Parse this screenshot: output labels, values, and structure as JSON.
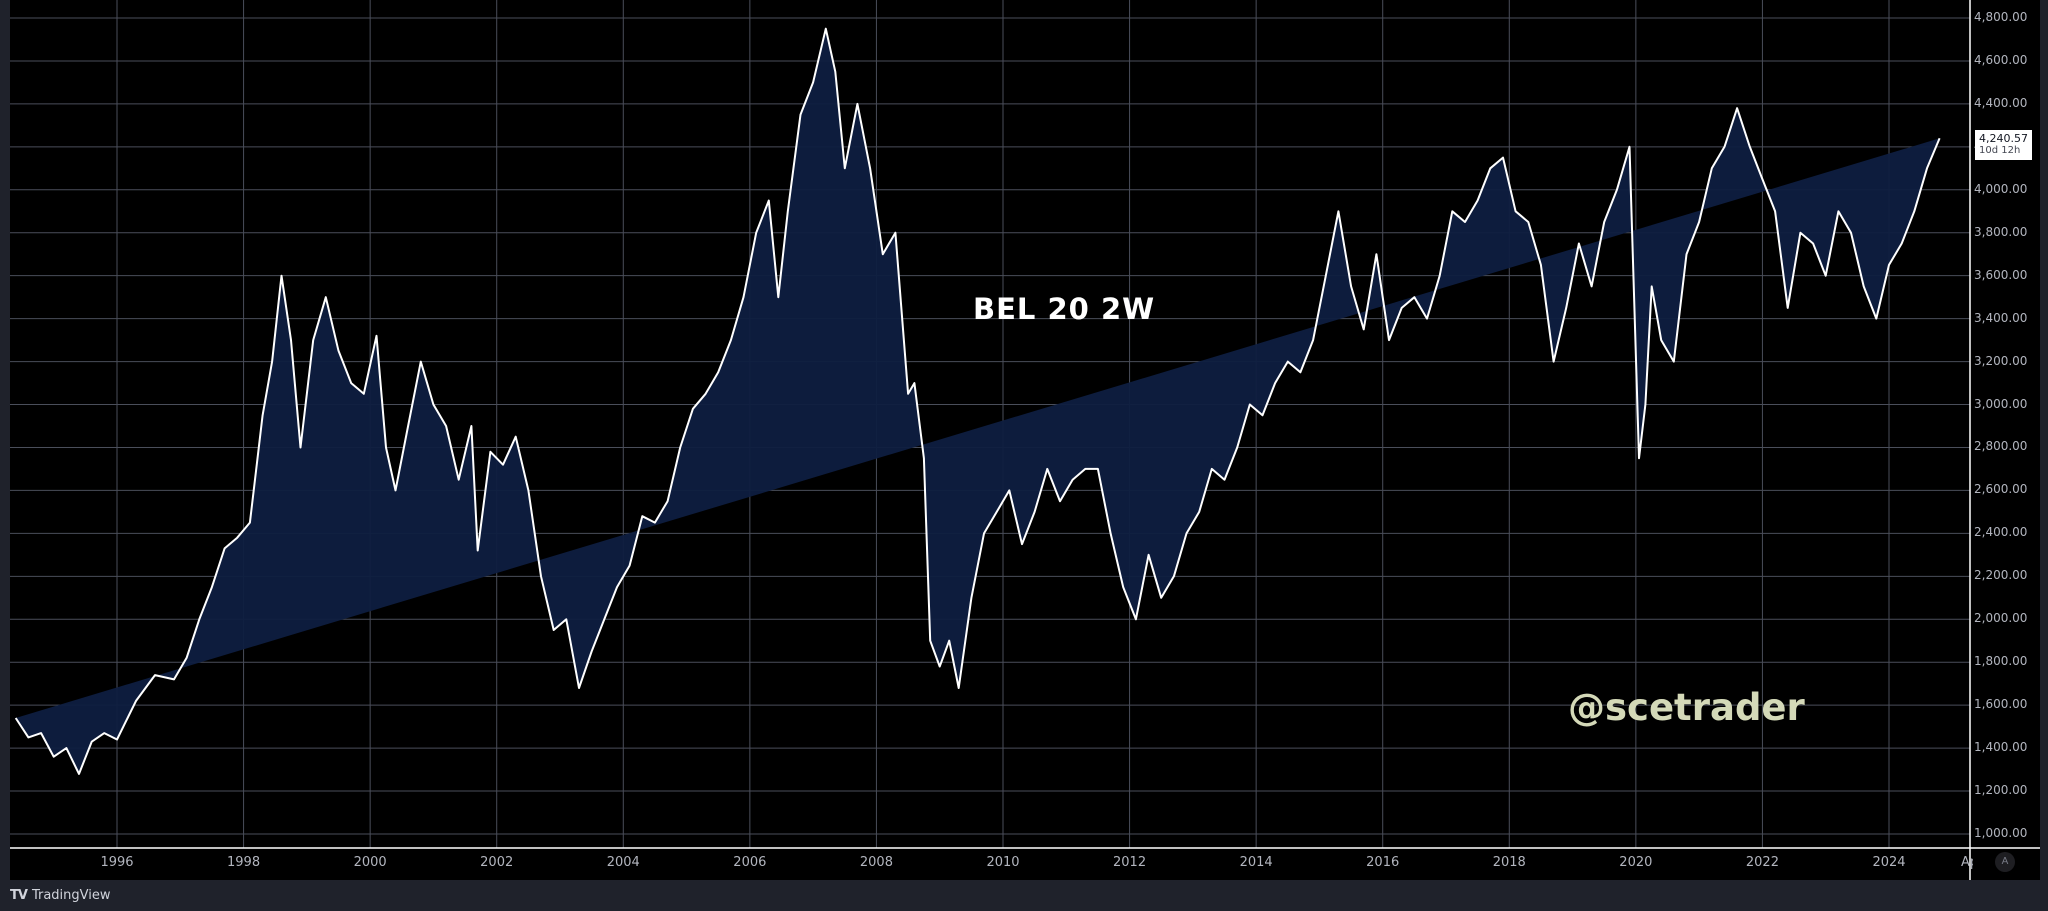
{
  "window": {
    "brand": "TradingView",
    "brand_logo": "TV"
  },
  "chart": {
    "title": "BEL 20 2W",
    "watermark": "@scetrader",
    "last_price": "4,240.57",
    "countdown": "10d 12h",
    "auto_scale_label": "A",
    "time_axis_cutoff_label": "Ap"
  },
  "colors": {
    "background": "#000000",
    "area_fill": "#0e1d40",
    "line": "#ffffff",
    "grid": "#4a4e5a",
    "watermark": "#d4d9b8",
    "axis_text": "#b2b5be",
    "footer_bg": "#1f222b"
  },
  "price_axis": [
    "4,800.00",
    "4,600.00",
    "4,400.00",
    "4,200.00",
    "4,000.00",
    "3,800.00",
    "3,600.00",
    "3,400.00",
    "3,200.00",
    "3,000.00",
    "2,800.00",
    "2,600.00",
    "2,400.00",
    "2,200.00",
    "2,000.00",
    "1,800.00",
    "1,600.00",
    "1,400.00",
    "1,200.00",
    "1,000.00"
  ],
  "time_axis": [
    "1996",
    "1998",
    "2000",
    "2002",
    "2004",
    "2006",
    "2008",
    "2010",
    "2012",
    "2014",
    "2016",
    "2018",
    "2020",
    "2022",
    "2024"
  ],
  "chart_data": {
    "type": "area",
    "title": "BEL 20 2W",
    "xlabel": "",
    "ylabel": "",
    "ylim": [
      950,
      4850
    ],
    "xlim": [
      1994.4,
      2024.9
    ],
    "grid": true,
    "legend": "none",
    "x": [
      1994.4,
      1994.6,
      1994.8,
      1995.0,
      1995.2,
      1995.4,
      1995.6,
      1995.8,
      1996.0,
      1996.3,
      1996.6,
      1996.9,
      1997.1,
      1997.3,
      1997.5,
      1997.7,
      1997.9,
      1998.1,
      1998.3,
      1998.45,
      1998.6,
      1998.75,
      1998.9,
      1999.1,
      1999.3,
      1999.5,
      1999.7,
      1999.9,
      2000.1,
      2000.25,
      2000.4,
      2000.6,
      2000.8,
      2001.0,
      2001.2,
      2001.4,
      2001.6,
      2001.7,
      2001.9,
      2002.1,
      2002.3,
      2002.5,
      2002.7,
      2002.9,
      2003.1,
      2003.3,
      2003.5,
      2003.7,
      2003.9,
      2004.1,
      2004.3,
      2004.5,
      2004.7,
      2004.9,
      2005.1,
      2005.3,
      2005.5,
      2005.7,
      2005.9,
      2006.1,
      2006.3,
      2006.45,
      2006.6,
      2006.8,
      2007.0,
      2007.2,
      2007.35,
      2007.5,
      2007.7,
      2007.9,
      2008.1,
      2008.3,
      2008.5,
      2008.6,
      2008.75,
      2008.85,
      2009.0,
      2009.15,
      2009.3,
      2009.5,
      2009.7,
      2009.9,
      2010.1,
      2010.3,
      2010.5,
      2010.7,
      2010.9,
      2011.1,
      2011.3,
      2011.5,
      2011.7,
      2011.9,
      2012.1,
      2012.3,
      2012.5,
      2012.7,
      2012.9,
      2013.1,
      2013.3,
      2013.5,
      2013.7,
      2013.9,
      2014.1,
      2014.3,
      2014.5,
      2014.7,
      2014.9,
      2015.1,
      2015.3,
      2015.5,
      2015.7,
      2015.9,
      2016.1,
      2016.3,
      2016.5,
      2016.7,
      2016.9,
      2017.1,
      2017.3,
      2017.5,
      2017.7,
      2017.9,
      2018.1,
      2018.3,
      2018.5,
      2018.7,
      2018.9,
      2019.1,
      2019.3,
      2019.5,
      2019.7,
      2019.9,
      2020.05,
      2020.15,
      2020.25,
      2020.4,
      2020.6,
      2020.8,
      2021.0,
      2021.2,
      2021.4,
      2021.6,
      2021.8,
      2022.0,
      2022.2,
      2022.4,
      2022.6,
      2022.8,
      2023.0,
      2023.2,
      2023.4,
      2023.6,
      2023.8,
      2024.0,
      2024.2,
      2024.4,
      2024.6,
      2024.8,
      2024.9
    ],
    "values": [
      1540,
      1450,
      1470,
      1360,
      1400,
      1280,
      1430,
      1470,
      1440,
      1620,
      1740,
      1720,
      1820,
      2000,
      2150,
      2330,
      2380,
      2450,
      2950,
      3200,
      3600,
      3300,
      2800,
      3300,
      3500,
      3250,
      3100,
      3050,
      3320,
      2800,
      2600,
      2900,
      3200,
      3000,
      2900,
      2650,
      2900,
      2320,
      2780,
      2720,
      2850,
      2600,
      2200,
      1950,
      2000,
      1680,
      1850,
      2000,
      2150,
      2250,
      2480,
      2450,
      2550,
      2800,
      2980,
      3050,
      3150,
      3300,
      3500,
      3800,
      3950,
      3500,
      3900,
      4350,
      4500,
      4750,
      4550,
      4100,
      4400,
      4100,
      3700,
      3800,
      3050,
      3100,
      2750,
      1900,
      1780,
      1900,
      1680,
      2100,
      2400,
      2500,
      2600,
      2350,
      2500,
      2700,
      2550,
      2650,
      2700,
      2700,
      2400,
      2150,
      2000,
      2300,
      2100,
      2200,
      2400,
      2500,
      2700,
      2650,
      2800,
      3000,
      2950,
      3100,
      3200,
      3150,
      3300,
      3600,
      3900,
      3550,
      3350,
      3700,
      3300,
      3450,
      3500,
      3400,
      3600,
      3900,
      3850,
      3950,
      4100,
      4150,
      3900,
      3850,
      3650,
      3200,
      3450,
      3750,
      3550,
      3850,
      4000,
      4200,
      2750,
      3000,
      3550,
      3300,
      3200,
      3700,
      3850,
      4100,
      4200,
      4380,
      4200,
      4050,
      3900,
      3450,
      3800,
      3750,
      3600,
      3900,
      3800,
      3550,
      3400,
      3650,
      3750,
      3900,
      4100,
      4240
    ]
  }
}
